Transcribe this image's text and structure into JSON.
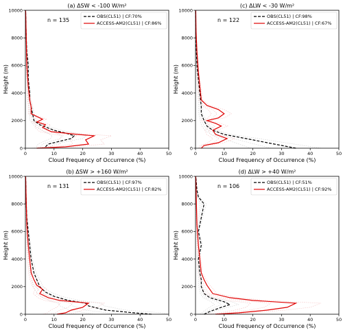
{
  "chart_data": [
    {
      "type": "line",
      "title": "(a) ΔSW < -100 W/m²",
      "xlabel": "Cloud Frequency of Occurrence (%)",
      "ylabel": "Height (m)",
      "xlim": [
        0,
        50
      ],
      "ylim": [
        0,
        10000
      ],
      "xticks": [
        "0",
        "10",
        "20",
        "30",
        "40",
        "50"
      ],
      "yticks": [
        "0",
        "2000",
        "4000",
        "6000",
        "8000",
        "10000"
      ],
      "n_label": "n = 135",
      "legend_position": "top-right",
      "series": [
        {
          "name": "OBS(CL51) | CF:70%",
          "color": "#000000",
          "dash": "4,2",
          "points": [
            [
              7,
              100
            ],
            [
              8,
              300
            ],
            [
              12,
              500
            ],
            [
              16,
              700
            ],
            [
              17,
              900
            ],
            [
              14,
              1100
            ],
            [
              10,
              1300
            ],
            [
              5,
              1700
            ],
            [
              3,
              2000
            ],
            [
              2.5,
              2500
            ],
            [
              2,
              3000
            ],
            [
              1.5,
              3500
            ],
            [
              1.5,
              4000
            ],
            [
              1,
              5000
            ],
            [
              1,
              6000
            ],
            [
              0.5,
              7000
            ],
            [
              0.3,
              8000
            ],
            [
              0.2,
              9000
            ],
            [
              0.1,
              10000
            ]
          ]
        },
        {
          "name": "ACCESS-AM2(CL51) | CF:86%",
          "color": "#e00000",
          "dash": "",
          "points": [
            [
              4,
              0
            ],
            [
              14,
              100
            ],
            [
              22,
              300
            ],
            [
              21,
              600
            ],
            [
              24,
              900
            ],
            [
              18,
              1000
            ],
            [
              9,
              1200
            ],
            [
              6,
              1500
            ],
            [
              7,
              1700
            ],
            [
              4,
              1900
            ],
            [
              6,
              2100
            ],
            [
              4,
              2300
            ],
            [
              2,
              2500
            ],
            [
              2,
              3000
            ],
            [
              1.5,
              3500
            ],
            [
              1,
              4500
            ],
            [
              0.5,
              6000
            ],
            [
              0.3,
              8000
            ],
            [
              0.1,
              10000
            ]
          ]
        }
      ]
    },
    {
      "type": "line",
      "title": "(c) ΔLW < -30 W/m²",
      "xlabel": "Cloud Frequency of Occurrence (%)",
      "ylabel": "Height (m)",
      "xlim": [
        0,
        50
      ],
      "ylim": [
        0,
        10000
      ],
      "xticks": [
        "0",
        "10",
        "20",
        "30",
        "40",
        "50"
      ],
      "yticks": [
        "0",
        "2000",
        "4000",
        "6000",
        "8000",
        "10000"
      ],
      "n_label": "n = 122",
      "legend_position": "top-right",
      "series": [
        {
          "name": "OBS(CL51) | CF:98%",
          "color": "#000000",
          "dash": "4,2",
          "points": [
            [
              35,
              0
            ],
            [
              30,
              200
            ],
            [
              25,
              400
            ],
            [
              20,
              600
            ],
            [
              15,
              800
            ],
            [
              10,
              1000
            ],
            [
              6,
              1300
            ],
            [
              4,
              1600
            ],
            [
              3,
              2000
            ],
            [
              2,
              2500
            ],
            [
              2,
              3000
            ],
            [
              1.5,
              4000
            ],
            [
              1,
              5000
            ],
            [
              0.5,
              6000
            ],
            [
              0.3,
              7000
            ],
            [
              0.2,
              8000
            ],
            [
              0.1,
              9000
            ],
            [
              0,
              10000
            ]
          ]
        },
        {
          "name": "ACCESS-AM2(CL51) | CF:67%",
          "color": "#e00000",
          "dash": "",
          "points": [
            [
              2,
              0
            ],
            [
              3,
              200
            ],
            [
              8,
              400
            ],
            [
              11,
              700
            ],
            [
              7,
              1000
            ],
            [
              6,
              1300
            ],
            [
              9,
              1600
            ],
            [
              7,
              1800
            ],
            [
              4,
              2000
            ],
            [
              8,
              2200
            ],
            [
              10,
              2500
            ],
            [
              8,
              2800
            ],
            [
              4,
              3100
            ],
            [
              2,
              3500
            ],
            [
              1.5,
              4500
            ],
            [
              1,
              5500
            ],
            [
              0.5,
              7000
            ],
            [
              0.2,
              8500
            ],
            [
              0.1,
              10000
            ]
          ]
        }
      ]
    },
    {
      "type": "line",
      "title": "(b) ΔSW > +160 W/m²",
      "xlabel": "Cloud Frequency of Occurrence (%)",
      "ylabel": "Height (m)",
      "xlim": [
        0,
        50
      ],
      "ylim": [
        0,
        10000
      ],
      "xticks": [
        "0",
        "10",
        "20",
        "30",
        "40",
        "50"
      ],
      "yticks": [
        "0",
        "2000",
        "4000",
        "6000",
        "8000",
        "10000"
      ],
      "n_label": "n = 131",
      "legend_position": "top-right",
      "series": [
        {
          "name": "OBS(CL51) | CF:97%",
          "color": "#000000",
          "dash": "4,2",
          "points": [
            [
              44,
              0
            ],
            [
              38,
              100
            ],
            [
              28,
              300
            ],
            [
              22,
              600
            ],
            [
              21,
              800
            ],
            [
              15,
              1000
            ],
            [
              10,
              1300
            ],
            [
              7,
              1600
            ],
            [
              5,
              2000
            ],
            [
              4,
              2500
            ],
            [
              3,
              3000
            ],
            [
              2,
              4000
            ],
            [
              1.5,
              5000
            ],
            [
              1,
              6000
            ],
            [
              0.5,
              7000
            ],
            [
              0.3,
              8000
            ],
            [
              0.2,
              9000
            ],
            [
              0.1,
              10000
            ]
          ]
        },
        {
          "name": "ACCESS-AM2(CL51) | CF:82%",
          "color": "#e00000",
          "dash": "",
          "points": [
            [
              11,
              0
            ],
            [
              14,
              100
            ],
            [
              16,
              300
            ],
            [
              20,
              500
            ],
            [
              22,
              800
            ],
            [
              12,
              1000
            ],
            [
              8,
              1200
            ],
            [
              5,
              1500
            ],
            [
              6,
              1800
            ],
            [
              4,
              2100
            ],
            [
              3,
              2500
            ],
            [
              2,
              3000
            ],
            [
              1.5,
              4000
            ],
            [
              1,
              5000
            ],
            [
              0.5,
              6500
            ],
            [
              0.3,
              8000
            ],
            [
              0.1,
              10000
            ]
          ]
        }
      ]
    },
    {
      "type": "line",
      "title": "(d) ΔLW > +40 W/m²",
      "xlabel": "Cloud Frequency of Occurrence (%)",
      "ylabel": "Height (m)",
      "xlim": [
        0,
        50
      ],
      "ylim": [
        0,
        10000
      ],
      "xticks": [
        "0",
        "10",
        "20",
        "30",
        "40",
        "50"
      ],
      "yticks": [
        "0",
        "2000",
        "4000",
        "6000",
        "8000",
        "10000"
      ],
      "n_label": "n = 106",
      "legend_position": "top-right",
      "series": [
        {
          "name": "OBS(CL51) | CF:51%",
          "color": "#000000",
          "dash": "4,2",
          "points": [
            [
              3,
              0
            ],
            [
              5,
              200
            ],
            [
              9,
              500
            ],
            [
              12,
              700
            ],
            [
              10,
              900
            ],
            [
              5,
              1200
            ],
            [
              3,
              1500
            ],
            [
              2,
              2000
            ],
            [
              2,
              2500
            ],
            [
              1.5,
              3000
            ],
            [
              1,
              4000
            ],
            [
              2,
              5000
            ],
            [
              1,
              6000
            ],
            [
              2,
              7000
            ],
            [
              3,
              8000
            ],
            [
              1,
              8500
            ],
            [
              0.5,
              9000
            ],
            [
              0.1,
              10000
            ]
          ]
        },
        {
          "name": "ACCESS-AM2(CL51) | CF:92%",
          "color": "#e00000",
          "dash": "",
          "points": [
            [
              7,
              0
            ],
            [
              15,
              100
            ],
            [
              25,
              300
            ],
            [
              32,
              500
            ],
            [
              35,
              800
            ],
            [
              20,
              1000
            ],
            [
              12,
              1200
            ],
            [
              6,
              1500
            ],
            [
              5,
              1800
            ],
            [
              4,
              2100
            ],
            [
              3,
              2500
            ],
            [
              2,
              3000
            ],
            [
              1.5,
              4000
            ],
            [
              1,
              5000
            ],
            [
              0.5,
              6500
            ],
            [
              0.3,
              8000
            ],
            [
              0.1,
              10000
            ]
          ]
        }
      ]
    }
  ]
}
